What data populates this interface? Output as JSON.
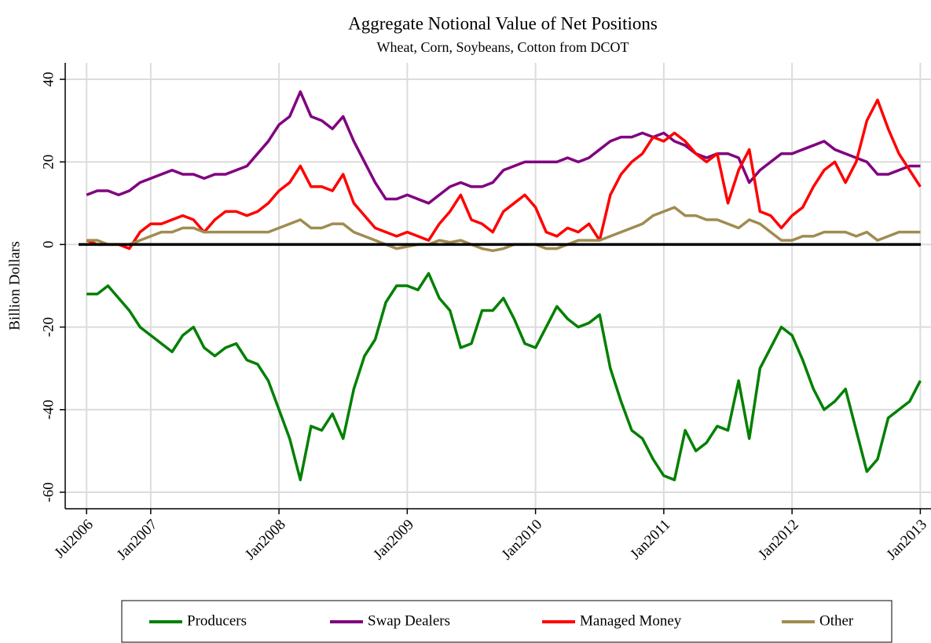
{
  "chart_data": {
    "type": "line",
    "title": "Aggregate Notional Value of Net Positions",
    "subtitle": "Wheat, Corn, Soybeans, Cotton from DCOT",
    "y_label": "Billion Dollars",
    "x": [
      "2006-07",
      "2006-08",
      "2006-09",
      "2006-10",
      "2006-11",
      "2006-12",
      "2007-01",
      "2007-02",
      "2007-03",
      "2007-04",
      "2007-05",
      "2007-06",
      "2007-07",
      "2007-08",
      "2007-09",
      "2007-10",
      "2007-11",
      "2007-12",
      "2008-01",
      "2008-02",
      "2008-03",
      "2008-04",
      "2008-05",
      "2008-06",
      "2008-07",
      "2008-08",
      "2008-09",
      "2008-10",
      "2008-11",
      "2008-12",
      "2009-01",
      "2009-02",
      "2009-03",
      "2009-04",
      "2009-05",
      "2009-06",
      "2009-07",
      "2009-08",
      "2009-09",
      "2009-10",
      "2009-11",
      "2009-12",
      "2010-01",
      "2010-02",
      "2010-03",
      "2010-04",
      "2010-05",
      "2010-06",
      "2010-07",
      "2010-08",
      "2010-09",
      "2010-10",
      "2010-11",
      "2010-12",
      "2011-01",
      "2011-02",
      "2011-03",
      "2011-04",
      "2011-05",
      "2011-06",
      "2011-07",
      "2011-08",
      "2011-09",
      "2011-10",
      "2011-11",
      "2011-12",
      "2012-01",
      "2012-02",
      "2012-03",
      "2012-04",
      "2012-05",
      "2012-06",
      "2012-07",
      "2012-08",
      "2012-09",
      "2012-10",
      "2012-11",
      "2012-12",
      "2013-01"
    ],
    "series": [
      {
        "name": "Producers",
        "color": "#008000",
        "values": [
          -12,
          -12,
          -10,
          -13,
          -16,
          -20,
          -22,
          -24,
          -26,
          -22,
          -20,
          -25,
          -27,
          -25,
          -24,
          -28,
          -29,
          -33,
          -40,
          -47,
          -57,
          -44,
          -45,
          -41,
          -47,
          -35,
          -27,
          -23,
          -14,
          -10,
          -10,
          -11,
          -7,
          -13,
          -16,
          -25,
          -24,
          -16,
          -16,
          -13,
          -18,
          -24,
          -25,
          -20,
          -15,
          -18,
          -20,
          -19,
          -17,
          -30,
          -38,
          -45,
          -47,
          -52,
          -56,
          -57,
          -45,
          -50,
          -48,
          -44,
          -45,
          -33,
          -47,
          -30,
          -25,
          -20,
          -22,
          -28,
          -35,
          -40,
          -38,
          -35,
          -45,
          -55,
          -52,
          -42,
          -40,
          -38,
          -33
        ]
      },
      {
        "name": "Swap Dealers",
        "color": "#800080",
        "values": [
          12,
          13,
          13,
          12,
          13,
          15,
          16,
          17,
          18,
          17,
          17,
          16,
          17,
          17,
          18,
          19,
          22,
          25,
          29,
          31,
          37,
          31,
          30,
          28,
          31,
          25,
          20,
          15,
          11,
          11,
          12,
          11,
          10,
          12,
          14,
          15,
          14,
          14,
          15,
          18,
          19,
          20,
          20,
          20,
          20,
          21,
          20,
          21,
          23,
          25,
          26,
          26,
          27,
          26,
          27,
          25,
          24,
          22,
          21,
          22,
          22,
          21,
          15,
          18,
          20,
          22,
          22,
          23,
          24,
          25,
          23,
          22,
          21,
          20,
          17,
          17,
          18,
          19,
          19
        ]
      },
      {
        "name": "Managed Money",
        "color": "#ff0000",
        "values": [
          1,
          0,
          0,
          0,
          -1,
          3,
          5,
          5,
          6,
          7,
          6,
          3,
          6,
          8,
          8,
          7,
          8,
          10,
          13,
          15,
          19,
          14,
          14,
          13,
          17,
          10,
          7,
          4,
          3,
          2,
          3,
          2,
          1,
          5,
          8,
          12,
          6,
          5,
          3,
          8,
          10,
          12,
          9,
          3,
          2,
          4,
          3,
          5,
          1,
          12,
          17,
          20,
          22,
          26,
          25,
          27,
          25,
          22,
          20,
          22,
          10,
          18,
          23,
          8,
          7,
          4,
          7,
          9,
          14,
          18,
          20,
          15,
          20,
          30,
          35,
          28,
          22,
          18,
          14
        ]
      },
      {
        "name": "Other",
        "color": "#a08c50",
        "values": [
          1,
          1,
          0,
          0,
          0,
          1,
          2,
          3,
          3,
          4,
          4,
          3,
          3,
          3,
          3,
          3,
          3,
          3,
          4,
          5,
          6,
          4,
          4,
          5,
          5,
          3,
          2,
          1,
          0,
          -1,
          -0.5,
          0,
          0,
          1,
          0.5,
          1,
          0,
          -1,
          -1.5,
          -1,
          0,
          0,
          0,
          -1,
          -1,
          0,
          1,
          1,
          1,
          2,
          3,
          4,
          5,
          7,
          8,
          9,
          7,
          7,
          6,
          6,
          5,
          4,
          6,
          5,
          3,
          1,
          1,
          2,
          2,
          3,
          3,
          3,
          2,
          3,
          1,
          2,
          3,
          3,
          3
        ]
      }
    ],
    "reference_line": 0,
    "xlim": [
      "2006-05",
      "2013-02"
    ],
    "xticks": [
      {
        "value": "2006-07",
        "label": "Jul2006"
      },
      {
        "value": "2007-01",
        "label": "Jan2007"
      },
      {
        "value": "2008-01",
        "label": "Jan2008"
      },
      {
        "value": "2009-01",
        "label": "Jan2009"
      },
      {
        "value": "2010-01",
        "label": "Jan2010"
      },
      {
        "value": "2011-01",
        "label": "Jan2011"
      },
      {
        "value": "2012-01",
        "label": "Jan2012"
      },
      {
        "value": "2013-01",
        "label": "Jan2013"
      }
    ],
    "ylim": [
      -64,
      44
    ],
    "yticks": [
      -60,
      -40,
      -20,
      0,
      20,
      40
    ],
    "yticks_labels_note": null,
    "grid": true,
    "legend": "bottom"
  }
}
